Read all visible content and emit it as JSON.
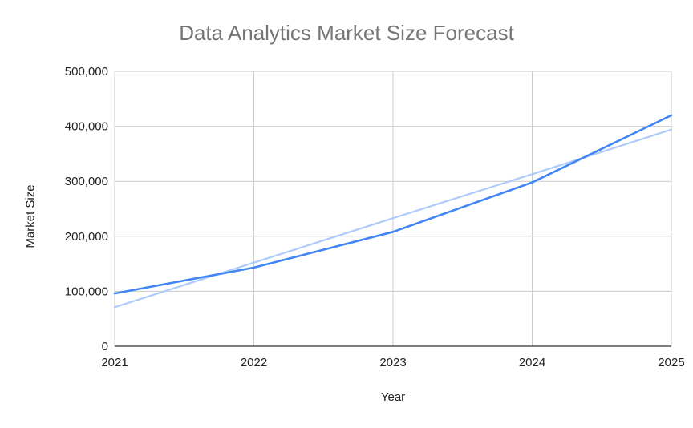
{
  "chart_data": {
    "type": "line",
    "title": "Data Analytics Market Size Forecast",
    "xlabel": "Year",
    "ylabel": "Market Size",
    "x": [
      "2021",
      "2022",
      "2023",
      "2024",
      "2025"
    ],
    "ylim": [
      0,
      500000
    ],
    "yticks": [
      "0",
      "100,000",
      "200,000",
      "300,000",
      "400,000",
      "500,000"
    ],
    "grid": true,
    "legend": "none",
    "series": [
      {
        "values": [
          96000,
          143000,
          208000,
          298000,
          420000
        ],
        "color": "#4285f4"
      },
      {
        "values": [
          71000,
          152000,
          233000,
          313000,
          394000
        ],
        "color": "#aecbfa",
        "style": "trendline"
      }
    ]
  }
}
